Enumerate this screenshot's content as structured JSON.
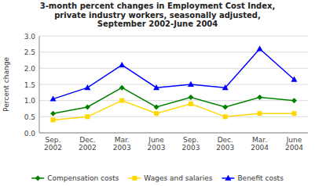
{
  "chart_data": {
    "type": "line",
    "title": "3-month percent changes in Employment Cost Index,\nprivate industry workers, seasonally adjusted,\nSeptember 2002-June 2004",
    "ylabel": "Percent change",
    "categories": [
      "Sep.\n2002",
      "Dec.\n2002",
      "Mar.\n2003",
      "June\n2003",
      "Sep.\n2003",
      "Dec.\n2003",
      "Mar.\n2004",
      "June\n2004"
    ],
    "series": [
      {
        "name": "Compensation costs",
        "color": "#008000",
        "marker": "diamond",
        "values": [
          0.6,
          0.8,
          1.4,
          0.8,
          1.1,
          0.8,
          1.1,
          1.0
        ]
      },
      {
        "name": "Wages and salaries",
        "color": "#FFD700",
        "marker": "square",
        "values": [
          0.4,
          0.5,
          1.0,
          0.6,
          0.9,
          0.5,
          0.6,
          0.6
        ]
      },
      {
        "name": "Benefit costs",
        "color": "#0000FF",
        "marker": "triangle",
        "values": [
          1.05,
          1.4,
          2.1,
          1.4,
          1.5,
          1.4,
          2.6,
          1.65
        ]
      }
    ],
    "ylim": [
      0.0,
      3.0
    ],
    "yticks": [
      {
        "value": 0.0,
        "label": "0.0"
      },
      0.5,
      {
        "value": 1.0,
        "label": "1.0"
      },
      1.5,
      {
        "value": 2.0,
        "label": "2.0"
      },
      2.5,
      {
        "value": 3.0,
        "label": "3.0"
      }
    ],
    "grid": true,
    "legend": "bottom"
  }
}
